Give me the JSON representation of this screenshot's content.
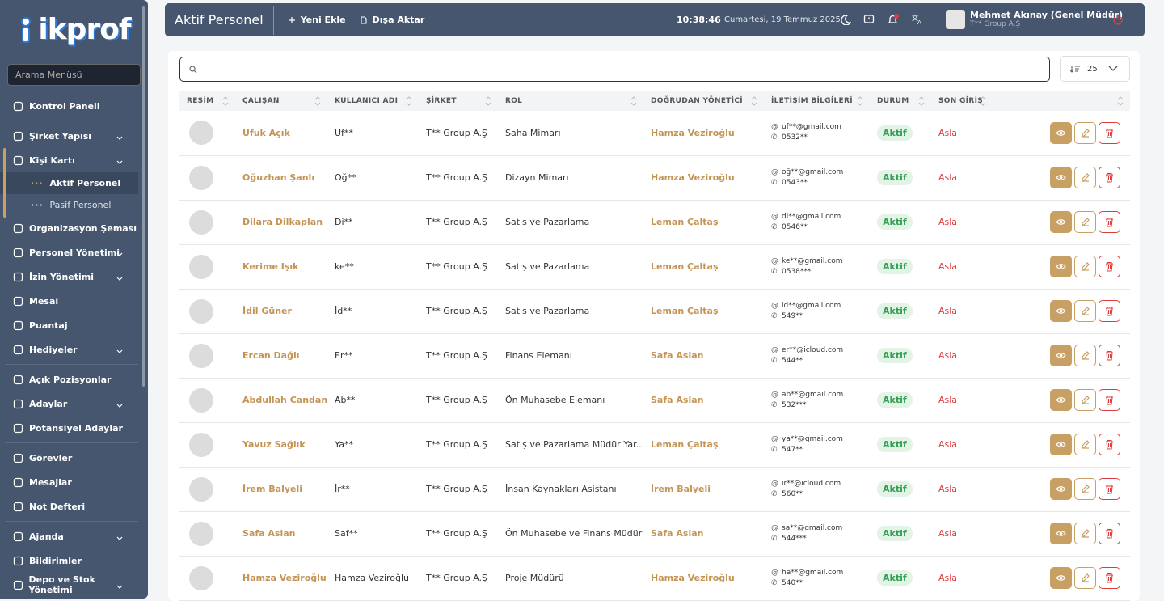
{
  "logo": "ikprof",
  "sidebar": {
    "search_placeholder": "Arama Menüsü",
    "groups": [
      {
        "items": [
          {
            "label": "Kontrol Paneli"
          }
        ]
      },
      {
        "items": [
          {
            "label": "Şirket Yapısı",
            "expandable": true
          },
          {
            "label": "Kişi Kartı",
            "expandable": true,
            "open": true,
            "children": [
              {
                "label": "Aktif Personel",
                "active": true
              },
              {
                "label": "Pasif Personel"
              }
            ]
          },
          {
            "label": "Organizasyon Şeması"
          },
          {
            "label": "Personel Yönetimi",
            "expandable": true
          },
          {
            "label": "İzin Yönetimi",
            "expandable": true
          },
          {
            "label": "Mesai"
          },
          {
            "label": "Puantaj"
          },
          {
            "label": "Hediyeler",
            "expandable": true
          }
        ]
      },
      {
        "items": [
          {
            "label": "Açık Pozisyonlar"
          },
          {
            "label": "Adaylar",
            "expandable": true
          },
          {
            "label": "Potansiyel Adaylar"
          }
        ]
      },
      {
        "items": [
          {
            "label": "Görevler"
          },
          {
            "label": "Mesajlar"
          },
          {
            "label": "Not Defteri"
          }
        ]
      },
      {
        "items": [
          {
            "label": "Ajanda",
            "expandable": true
          },
          {
            "label": "Bildirimler"
          },
          {
            "label": "Depo ve Stok Yönetimi",
            "expandable": true
          }
        ]
      }
    ]
  },
  "header": {
    "title": "Aktif Personel",
    "actions": [
      "Yeni Ekle",
      "Dışa Aktar"
    ],
    "time": "10:38:46",
    "date": "Cumartesi, 19 Temmuz 2025",
    "user": {
      "name": "Mehmet Akınay (Genel Müdür)",
      "company": "T** Group A.Ş"
    }
  },
  "toolbar": {
    "page_size": 25
  },
  "table": {
    "columns": [
      "RESİM",
      "ÇALIŞAN",
      "KULLANICI ADI",
      "ŞİRKET",
      "ROL",
      "DOĞRUDAN YÖNETİCİ",
      "İLETİŞİM BİLGİLERİ",
      "DURUM",
      "SON GİRİŞ"
    ],
    "rows": [
      {
        "name": "Ufuk Açık",
        "username": "Uf**",
        "company": "T** Group A.Ş",
        "role": "Saha Mimarı",
        "manager": "Hamza Veziroğlu",
        "email": "uf**@gmail.com",
        "phone": "0532**",
        "status": "Aktif",
        "last_login": "Asla"
      },
      {
        "name": "Oğuzhan Şanlı",
        "username": "Oğ**",
        "company": "T** Group A.Ş",
        "role": "Dizayn Mimarı",
        "manager": "Hamza Veziroğlu",
        "email": "oğ**@gmail.com",
        "phone": "0543**",
        "status": "Aktif",
        "last_login": "Asla"
      },
      {
        "name": "Dilara Dilkaplan",
        "username": "Di**",
        "company": "T** Group A.Ş",
        "role": "Satış ve Pazarlama",
        "manager": "Leman Çaltaş",
        "email": "di**@gmail.com",
        "phone": "0546**",
        "status": "Aktif",
        "last_login": "Asla"
      },
      {
        "name": "Kerime Işık",
        "username": "ke**",
        "company": "T** Group A.Ş",
        "role": "Satış ve Pazarlama",
        "manager": "Leman Çaltaş",
        "email": "ke**@gmail.com",
        "phone": "0538***",
        "status": "Aktif",
        "last_login": "Asla"
      },
      {
        "name": "İdil Güner",
        "username": "İd**",
        "company": "T** Group A.Ş",
        "role": "Satış ve Pazarlama",
        "manager": "Leman Çaltaş",
        "email": "id**@gmail.com",
        "phone": "549**",
        "status": "Aktif",
        "last_login": "Asla"
      },
      {
        "name": "Ercan Dağlı",
        "username": "Er**",
        "company": "T** Group A.Ş",
        "role": "Finans Elemanı",
        "manager": "Safa Aslan",
        "email": "er**@icloud.com",
        "phone": "544**",
        "status": "Aktif",
        "last_login": "Asla"
      },
      {
        "name": "Abdullah Candan",
        "username": "Ab**",
        "company": "T** Group A.Ş",
        "role": "Ön Muhasebe Elemanı",
        "manager": "Safa Aslan",
        "email": "ab**@gmail.com",
        "phone": "532***",
        "status": "Aktif",
        "last_login": "Asla"
      },
      {
        "name": "Yavuz Sağlık",
        "username": "Ya**",
        "company": "T** Group A.Ş",
        "role": "Satış ve Pazarlama Müdür Yar...",
        "manager": "Leman Çaltaş",
        "email": "ya**@gmail.com",
        "phone": "547**",
        "status": "Aktif",
        "last_login": "Asla"
      },
      {
        "name": "İrem Balyeli",
        "username": "İr**",
        "company": "T** Group A.Ş",
        "role": "İnsan Kaynakları Asistanı",
        "manager": "İrem Balyeli",
        "email": "ir**@icloud.com",
        "phone": "560**",
        "status": "Aktif",
        "last_login": "Asla"
      },
      {
        "name": "Safa Aslan",
        "username": "Saf**",
        "company": "T** Group A.Ş",
        "role": "Ön Muhasebe ve Finans Müdürü",
        "manager": "Safa Aslan",
        "email": "sa**@gmail.com",
        "phone": "544***",
        "status": "Aktif",
        "last_login": "Asla"
      },
      {
        "name": "Hamza Veziroğlu",
        "username": "Hamza Veziroğlu",
        "company": "T** Group A.Ş",
        "role": "Proje Müdürü",
        "manager": "Hamza Veziroğlu",
        "email": "ha**@gmail.com",
        "phone": "540**",
        "status": "Aktif",
        "last_login": "Asla"
      }
    ]
  }
}
